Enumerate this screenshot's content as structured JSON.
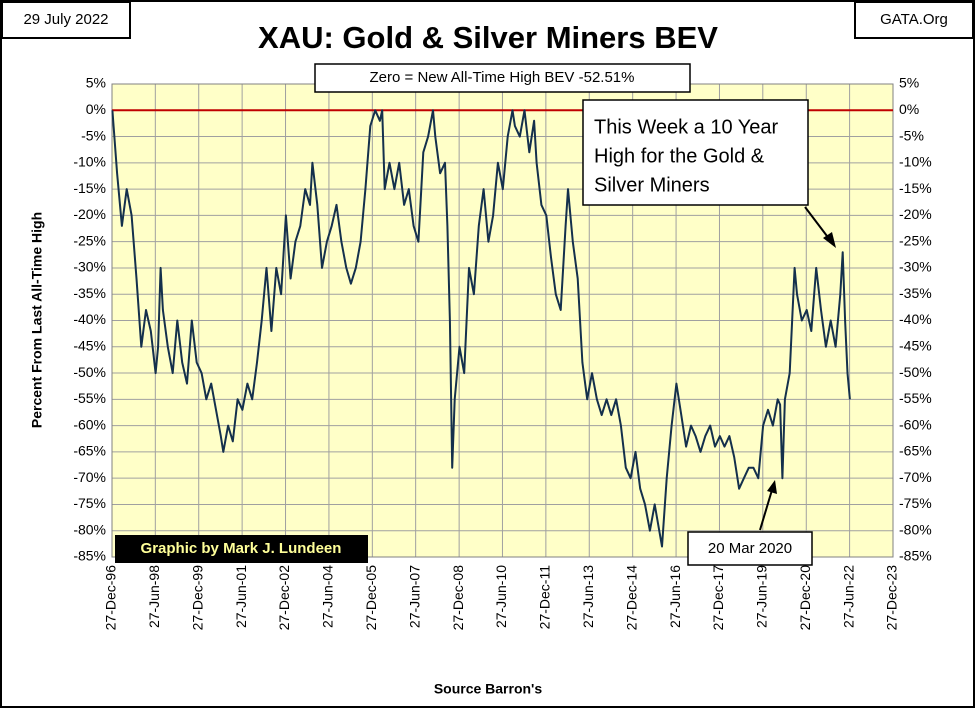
{
  "chart_data": {
    "type": "line",
    "title": "XAU: Gold & Silver Miners BEV",
    "date_label": "29 July 2022",
    "source_label": "GATA.Org",
    "zero_note": "Zero = New All-Time High BEV -52.51%",
    "callout": [
      "This Week a 10 Year",
      "High for the Gold &",
      "Silver Miners"
    ],
    "low_note": "20 Mar 2020",
    "credit": "Graphic by Mark J. Lundeen",
    "x_label": "Source Barron's",
    "y_label": "Percent  From  Last  All-Time  High",
    "reference_line": {
      "value": 0,
      "color": "#c00000"
    },
    "color": "#14304c",
    "background": "#ffffc8",
    "grid": true,
    "xlim": [
      "1996-12-27",
      "2023-12-27"
    ],
    "xticks": [
      {
        "value": "1996-12-27",
        "label": "27-Dec-96"
      },
      {
        "value": "1998-06-27",
        "label": "27-Jun-98"
      },
      {
        "value": "1999-12-27",
        "label": "27-Dec-99"
      },
      {
        "value": "2001-06-27",
        "label": "27-Jun-01"
      },
      {
        "value": "2002-12-27",
        "label": "27-Dec-02"
      },
      {
        "value": "2004-06-27",
        "label": "27-Jun-04"
      },
      {
        "value": "2005-12-27",
        "label": "27-Dec-05"
      },
      {
        "value": "2007-06-27",
        "label": "27-Jun-07"
      },
      {
        "value": "2008-12-27",
        "label": "27-Dec-08"
      },
      {
        "value": "2010-06-27",
        "label": "27-Jun-10"
      },
      {
        "value": "2011-12-27",
        "label": "27-Dec-11"
      },
      {
        "value": "2013-06-27",
        "label": "27-Jun-13"
      },
      {
        "value": "2014-12-27",
        "label": "27-Dec-14"
      },
      {
        "value": "2016-06-27",
        "label": "27-Jun-16"
      },
      {
        "value": "2017-12-27",
        "label": "27-Dec-17"
      },
      {
        "value": "2019-06-27",
        "label": "27-Jun-19"
      },
      {
        "value": "2020-12-27",
        "label": "27-Dec-20"
      },
      {
        "value": "2022-06-27",
        "label": "27-Jun-22"
      },
      {
        "value": "2023-12-27",
        "label": "27-Dec-23"
      }
    ],
    "ylim": [
      -85,
      5
    ],
    "yticks": [
      {
        "value": 5,
        "label": "5%"
      },
      {
        "value": 0,
        "label": "0%"
      },
      {
        "value": -5,
        "label": "-5%"
      },
      {
        "value": -10,
        "label": "-10%"
      },
      {
        "value": -15,
        "label": "-15%"
      },
      {
        "value": -20,
        "label": "-20%"
      },
      {
        "value": -25,
        "label": "-25%"
      },
      {
        "value": -30,
        "label": "-30%"
      },
      {
        "value": -35,
        "label": "-35%"
      },
      {
        "value": -40,
        "label": "-40%"
      },
      {
        "value": -45,
        "label": "-45%"
      },
      {
        "value": -50,
        "label": "-50%"
      },
      {
        "value": -55,
        "label": "-55%"
      },
      {
        "value": -60,
        "label": "-60%"
      },
      {
        "value": -65,
        "label": "-65%"
      },
      {
        "value": -70,
        "label": "-70%"
      },
      {
        "value": -75,
        "label": "-75%"
      },
      {
        "value": -80,
        "label": "-80%"
      },
      {
        "value": -85,
        "label": "-85%"
      }
    ],
    "x": [
      "1997-01",
      "1997-03",
      "1997-05",
      "1997-07",
      "1997-09",
      "1997-11",
      "1998-01",
      "1998-03",
      "1998-05",
      "1998-07",
      "1998-08",
      "1998-09",
      "1998-10",
      "1998-12",
      "1999-02",
      "1999-04",
      "1999-06",
      "1999-08",
      "1999-10",
      "1999-12",
      "2000-02",
      "2000-04",
      "2000-06",
      "2000-08",
      "2000-10",
      "2000-11",
      "2001-01",
      "2001-03",
      "2001-05",
      "2001-07",
      "2001-09",
      "2001-11",
      "2002-01",
      "2002-03",
      "2002-05",
      "2002-07",
      "2002-09",
      "2002-11",
      "2003-01",
      "2003-03",
      "2003-05",
      "2003-07",
      "2003-09",
      "2003-11",
      "2003-12",
      "2004-02",
      "2004-04",
      "2004-06",
      "2004-08",
      "2004-10",
      "2004-12",
      "2005-02",
      "2005-04",
      "2005-06",
      "2005-08",
      "2005-10",
      "2005-12",
      "2006-02",
      "2006-04",
      "2006-05",
      "2006-06",
      "2006-08",
      "2006-10",
      "2006-12",
      "2007-02",
      "2007-04",
      "2007-06",
      "2007-08",
      "2007-10",
      "2007-12",
      "2008-02",
      "2008-03",
      "2008-05",
      "2008-07",
      "2008-08",
      "2008-09",
      "2008-10",
      "2008-11",
      "2009-01",
      "2009-03",
      "2009-05",
      "2009-07",
      "2009-09",
      "2009-11",
      "2010-01",
      "2010-03",
      "2010-05",
      "2010-07",
      "2010-09",
      "2010-11",
      "2010-12",
      "2011-02",
      "2011-04",
      "2011-06",
      "2011-08",
      "2011-09",
      "2011-11",
      "2012-01",
      "2012-03",
      "2012-05",
      "2012-07",
      "2012-09",
      "2012-10",
      "2012-12",
      "2013-02",
      "2013-04",
      "2013-06",
      "2013-08",
      "2013-10",
      "2013-12",
      "2014-02",
      "2014-04",
      "2014-06",
      "2014-08",
      "2014-10",
      "2014-12",
      "2015-02",
      "2015-04",
      "2015-06",
      "2015-08",
      "2015-10",
      "2016-01",
      "2016-03",
      "2016-05",
      "2016-07",
      "2016-09",
      "2016-11",
      "2017-01",
      "2017-03",
      "2017-05",
      "2017-07",
      "2017-09",
      "2017-11",
      "2018-01",
      "2018-03",
      "2018-05",
      "2018-07",
      "2018-09",
      "2018-11",
      "2019-01",
      "2019-03",
      "2019-05",
      "2019-07",
      "2019-09",
      "2019-11",
      "2020-01",
      "2020-02",
      "2020-03",
      "2020-04",
      "2020-06",
      "2020-08",
      "2020-09",
      "2020-11",
      "2021-01",
      "2021-03",
      "2021-05",
      "2021-07",
      "2021-09",
      "2021-11",
      "2022-01",
      "2022-03",
      "2022-04",
      "2022-05",
      "2022-06",
      "2022-07"
    ],
    "values": [
      0,
      -12,
      -22,
      -15,
      -20,
      -32,
      -45,
      -38,
      -42,
      -50,
      -45,
      -30,
      -38,
      -45,
      -50,
      -40,
      -48,
      -52,
      -40,
      -48,
      -50,
      -55,
      -52,
      -57,
      -62,
      -65,
      -60,
      -63,
      -55,
      -57,
      -52,
      -55,
      -48,
      -40,
      -30,
      -42,
      -30,
      -35,
      -20,
      -32,
      -25,
      -22,
      -15,
      -18,
      -10,
      -18,
      -30,
      -25,
      -22,
      -18,
      -25,
      -30,
      -33,
      -30,
      -25,
      -15,
      -3,
      0,
      -2,
      0,
      -15,
      -10,
      -15,
      -10,
      -18,
      -15,
      -22,
      -25,
      -8,
      -5,
      0,
      -5,
      -12,
      -10,
      -22,
      -40,
      -68,
      -55,
      -45,
      -50,
      -30,
      -35,
      -22,
      -15,
      -25,
      -20,
      -10,
      -15,
      -5,
      0,
      -3,
      -5,
      0,
      -8,
      -2,
      -10,
      -18,
      -20,
      -28,
      -35,
      -38,
      -22,
      -15,
      -25,
      -32,
      -48,
      -55,
      -50,
      -55,
      -58,
      -55,
      -58,
      -55,
      -60,
      -68,
      -70,
      -65,
      -72,
      -75,
      -80,
      -75,
      -83,
      -70,
      -60,
      -52,
      -58,
      -64,
      -60,
      -62,
      -65,
      -62,
      -60,
      -64,
      -62,
      -64,
      -62,
      -66,
      -72,
      -70,
      -68,
      -68,
      -70,
      -60,
      -57,
      -60,
      -55,
      -56,
      -70,
      -55,
      -50,
      -30,
      -35,
      -40,
      -38,
      -42,
      -30,
      -38,
      -45,
      -40,
      -45,
      -35,
      -27,
      -40,
      -50,
      -55
    ]
  }
}
